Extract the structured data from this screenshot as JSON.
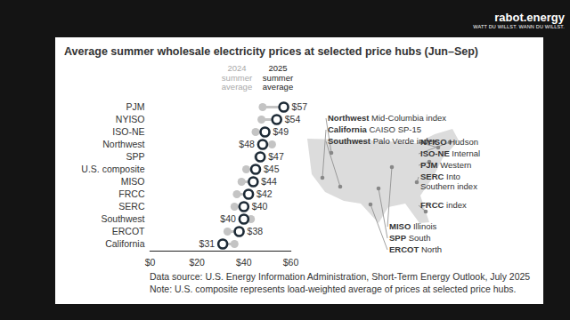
{
  "chart_data": {
    "type": "dumbbell",
    "title": "Average summer wholesale electricity prices at selected price hubs (Jun–Sep)",
    "orientation": "horizontal",
    "categories": [
      "PJM",
      "NYISO",
      "ISO-NE",
      "Northwest",
      "SPP",
      "U.S. composite",
      "MISO",
      "FRCC",
      "SERC",
      "Southwest",
      "ERCOT",
      "California"
    ],
    "series": [
      {
        "name": "2024 summer average",
        "color": "#c4c4c4",
        "values": [
          48,
          47.5,
          45,
          52,
          46,
          41,
          39,
          37,
          36,
          43,
          33,
          36
        ]
      },
      {
        "name": "2025 summer average",
        "color": "#1d2a36",
        "values": [
          57,
          54,
          49,
          48,
          47,
          45,
          44,
          42,
          40,
          40,
          38,
          31
        ],
        "value_labels": [
          "$57",
          "$54",
          "$49",
          "$48",
          "$47",
          "$45",
          "$44",
          "$42",
          "$40",
          "$40",
          "$38",
          "$31"
        ]
      }
    ],
    "xlim": [
      0,
      60
    ],
    "xticks": [
      {
        "value": 0,
        "label": "$0"
      },
      {
        "value": 20,
        "label": "$20"
      },
      {
        "value": 40,
        "label": "$40"
      },
      {
        "value": 60,
        "label": "$60"
      }
    ],
    "grid": false,
    "data_labels": true,
    "source": "Data source: U.S. Energy Information Administration, Short-Term Energy Outlook, July 2025",
    "note": "Note: U.S. composite represents load-weighted average of prices at selected price hubs.",
    "map_labels": [
      {
        "name": "Northwest",
        "detail": "Mid-Columbia index"
      },
      {
        "name": "California",
        "detail": "CAISO SP-15"
      },
      {
        "name": "Southwest",
        "detail": "Palo Verde index"
      },
      {
        "name": "NYISO",
        "detail": "Hudson"
      },
      {
        "name": "ISO-NE",
        "detail": "Internal"
      },
      {
        "name": "PJM",
        "detail": "Western"
      },
      {
        "name": "SERC",
        "detail": "Into Southern index"
      },
      {
        "name": "FRCC",
        "detail": "index"
      },
      {
        "name": "MISO",
        "detail": "Illinois"
      },
      {
        "name": "SPP",
        "detail": "South"
      },
      {
        "name": "ERCOT",
        "detail": "North"
      }
    ]
  },
  "branding": {
    "name": "rabot.energy",
    "tagline": "WATT DU WILLST. WANN DU WILLST."
  }
}
